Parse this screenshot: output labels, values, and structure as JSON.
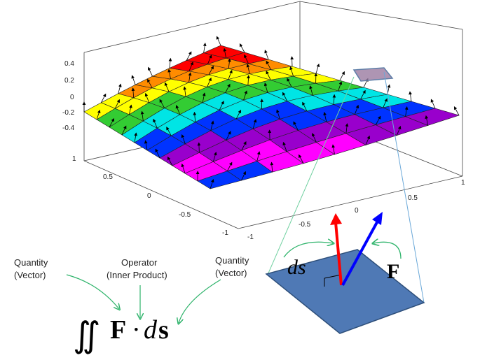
{
  "axes": {
    "z_ticks": [
      "0.4",
      "0.2",
      "0",
      "-0.2",
      "-0.4"
    ],
    "y_ticks": [
      "1",
      "0.5",
      "0",
      "-0.5",
      "-1"
    ],
    "x_ticks": [
      "-1",
      "-0.5",
      "0",
      "0.5",
      "1"
    ]
  },
  "surface": {
    "rows": 8,
    "cols": 10,
    "band_colors": [
      "#ff0000",
      "#ff8c00",
      "#ffff00",
      "#33cc33",
      "#00e5e5",
      "#0033ff",
      "#9900cc",
      "#ff00ff",
      "#0033ff"
    ]
  },
  "inset": {
    "ds_label": "ds",
    "f_label": "F",
    "patch_color": "#4f79b5",
    "ds_arrow_color": "#ff0000",
    "f_arrow_color": "#0000ff"
  },
  "annotations": {
    "left_line1": "Quantity",
    "left_line2": "(Vector)",
    "mid_line1": "Operator",
    "mid_line2": "(Inner Product)",
    "right_line1": "Quantity",
    "right_line2": "(Vector)"
  },
  "formula": {
    "integral": "∬",
    "F": "F",
    "dot": "·",
    "d": "d",
    "s": "s"
  }
}
